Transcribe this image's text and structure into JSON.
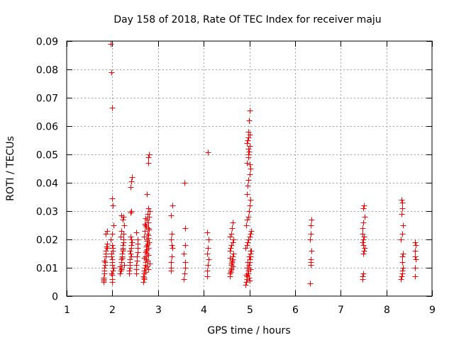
{
  "chart_data": {
    "type": "scatter",
    "title": "Day 158 of 2018, Rate Of TEC Index for receiver maju",
    "xlabel": "GPS time / hours",
    "ylabel": "ROTI / TECUs",
    "xlim": [
      1,
      9
    ],
    "ylim": [
      0,
      0.09
    ],
    "xticks": [
      1,
      2,
      3,
      4,
      5,
      6,
      7,
      8,
      9
    ],
    "xtick_labels": [
      "1",
      "2",
      "3",
      "4",
      "5",
      "6",
      "7",
      "8",
      "9"
    ],
    "yticks": [
      0,
      0.01,
      0.02,
      0.03,
      0.04,
      0.05,
      0.06,
      0.07,
      0.08,
      0.09
    ],
    "ytick_labels": [
      "0",
      "0.01",
      "0.02",
      "0.03",
      "0.04",
      "0.05",
      "0.06",
      "0.07",
      "0.08",
      "0.09"
    ],
    "grid": true,
    "marker": "+",
    "series": [
      {
        "name": "ROTI",
        "color": "#ff0000",
        "x": [
          1.8,
          1.81,
          1.82,
          1.83,
          1.84,
          1.85,
          1.86,
          1.87,
          1.88,
          1.89,
          1.8,
          1.82,
          1.84,
          1.86,
          1.88,
          1.81,
          1.83,
          1.85,
          1.97,
          1.98,
          1.99,
          2.0,
          2.01,
          2.02,
          1.97,
          1.99,
          2.01,
          1.98,
          2.0,
          2.02,
          1.98,
          1.99,
          2.0,
          2.0,
          1.99,
          2.01,
          1.98,
          2.0,
          1.99,
          2.01,
          2.17,
          2.18,
          2.19,
          2.2,
          2.21,
          2.22,
          2.23,
          2.24,
          2.25,
          2.26,
          2.17,
          2.19,
          2.21,
          2.23,
          2.25,
          2.18,
          2.2,
          2.22,
          2.24,
          2.26,
          2.19,
          2.21,
          2.23,
          2.2,
          2.37,
          2.38,
          2.39,
          2.4,
          2.41,
          2.42,
          2.43,
          2.37,
          2.39,
          2.41,
          2.43,
          2.38,
          2.4,
          2.42,
          2.4,
          2.41,
          2.39,
          2.42,
          2.4,
          2.52,
          2.53,
          2.54,
          2.55,
          2.56,
          2.52,
          2.54,
          2.56,
          2.53,
          2.55,
          2.68,
          2.69,
          2.7,
          2.71,
          2.72,
          2.73,
          2.74,
          2.75,
          2.76,
          2.77,
          2.78,
          2.79,
          2.8,
          2.81,
          2.68,
          2.7,
          2.72,
          2.74,
          2.76,
          2.78,
          2.8,
          2.69,
          2.71,
          2.73,
          2.75,
          2.77,
          2.79,
          2.81,
          2.7,
          2.72,
          2.74,
          2.76,
          2.78,
          2.8,
          2.71,
          2.73,
          2.75,
          2.77,
          2.79,
          2.75,
          2.77,
          2.79,
          2.78,
          2.8,
          2.79,
          2.76,
          2.78,
          2.74,
          2.7,
          2.72,
          3.28,
          3.29,
          3.3,
          3.31,
          3.28,
          3.3,
          3.29,
          3.31,
          3.3,
          3.29,
          3.57,
          3.58,
          3.59,
          3.6,
          3.57,
          3.59,
          3.6,
          3.58,
          4.07,
          4.08,
          4.09,
          4.1,
          4.07,
          4.09,
          4.1,
          4.08,
          4.09,
          4.57,
          4.58,
          4.59,
          4.6,
          4.61,
          4.62,
          4.63,
          4.64,
          4.65,
          4.57,
          4.59,
          4.61,
          4.63,
          4.65,
          4.58,
          4.6,
          4.62,
          4.64,
          4.59,
          4.61,
          4.63,
          4.6,
          4.62,
          4.58,
          4.92,
          4.93,
          4.94,
          4.95,
          4.96,
          4.97,
          4.98,
          4.99,
          5.0,
          5.01,
          5.02,
          5.03,
          5.04,
          4.92,
          4.94,
          4.96,
          4.98,
          5.0,
          5.02,
          5.04,
          4.93,
          4.95,
          4.97,
          4.99,
          5.01,
          5.03,
          4.94,
          4.96,
          4.98,
          5.0,
          5.02,
          4.95,
          4.97,
          4.99,
          5.01,
          4.96,
          4.98,
          5.0,
          4.97,
          4.99,
          5.01,
          4.95,
          4.97,
          4.98,
          5.0,
          4.96,
          4.99,
          5.02,
          4.94,
          4.97,
          4.99,
          5.01,
          4.93,
          5.03,
          6.33,
          6.34,
          6.35,
          6.36,
          6.33,
          6.35,
          6.34,
          6.36,
          6.35,
          7.47,
          7.48,
          7.49,
          7.5,
          7.51,
          7.52,
          7.47,
          7.49,
          7.51,
          7.48,
          7.5,
          7.52,
          7.49,
          7.51,
          7.5,
          7.48,
          8.32,
          8.33,
          8.34,
          8.35,
          8.36,
          8.32,
          8.34,
          8.36,
          8.33,
          8.35,
          8.34,
          8.33,
          8.35,
          8.34,
          8.36,
          8.62,
          8.63,
          8.64,
          8.62,
          8.64,
          8.63,
          8.63
        ],
        "y": [
          0.0055,
          0.006,
          0.008,
          0.01,
          0.012,
          0.014,
          0.016,
          0.0175,
          0.0185,
          0.023,
          0.005,
          0.009,
          0.011,
          0.015,
          0.017,
          0.0065,
          0.0125,
          0.022,
          0.089,
          0.079,
          0.0665,
          0.0345,
          0.032,
          0.025,
          0.02,
          0.018,
          0.016,
          0.014,
          0.012,
          0.01,
          0.008,
          0.006,
          0.005,
          0.022,
          0.011,
          0.009,
          0.015,
          0.0075,
          0.013,
          0.017,
          0.008,
          0.009,
          0.01,
          0.012,
          0.014,
          0.016,
          0.018,
          0.02,
          0.022,
          0.025,
          0.0105,
          0.013,
          0.015,
          0.017,
          0.019,
          0.021,
          0.023,
          0.027,
          0.028,
          0.011,
          0.0095,
          0.0135,
          0.0165,
          0.0285,
          0.008,
          0.01,
          0.012,
          0.015,
          0.018,
          0.02,
          0.042,
          0.009,
          0.013,
          0.017,
          0.019,
          0.016,
          0.0385,
          0.0405,
          0.0295,
          0.03,
          0.011,
          0.014,
          0.021,
          0.008,
          0.011,
          0.014,
          0.017,
          0.02,
          0.0095,
          0.0125,
          0.0155,
          0.0225,
          0.0185,
          0.005,
          0.006,
          0.008,
          0.01,
          0.012,
          0.014,
          0.016,
          0.018,
          0.02,
          0.022,
          0.024,
          0.026,
          0.028,
          0.03,
          0.007,
          0.009,
          0.011,
          0.013,
          0.015,
          0.017,
          0.019,
          0.021,
          0.023,
          0.025,
          0.027,
          0.029,
          0.0095,
          0.0115,
          0.0135,
          0.0155,
          0.0175,
          0.0195,
          0.0215,
          0.0235,
          0.0255,
          0.0275,
          0.0165,
          0.0185,
          0.0205,
          0.0105,
          0.0125,
          0.0145,
          0.049,
          0.05,
          0.047,
          0.036,
          0.031,
          0.0245,
          0.0065,
          0.0085,
          0.01,
          0.012,
          0.014,
          0.017,
          0.02,
          0.022,
          0.0285,
          0.032,
          0.018,
          0.009,
          0.006,
          0.008,
          0.01,
          0.012,
          0.015,
          0.018,
          0.024,
          0.04,
          0.007,
          0.009,
          0.011,
          0.013,
          0.015,
          0.017,
          0.02,
          0.0225,
          0.0508,
          0.007,
          0.008,
          0.009,
          0.01,
          0.011,
          0.012,
          0.013,
          0.014,
          0.015,
          0.016,
          0.017,
          0.018,
          0.019,
          0.02,
          0.021,
          0.022,
          0.024,
          0.026,
          0.0085,
          0.0095,
          0.0105,
          0.0115,
          0.0125,
          0.0135,
          0.004,
          0.005,
          0.006,
          0.007,
          0.008,
          0.009,
          0.01,
          0.011,
          0.012,
          0.013,
          0.014,
          0.015,
          0.016,
          0.017,
          0.018,
          0.019,
          0.02,
          0.021,
          0.022,
          0.023,
          0.025,
          0.027,
          0.028,
          0.03,
          0.032,
          0.034,
          0.036,
          0.039,
          0.041,
          0.043,
          0.045,
          0.047,
          0.049,
          0.051,
          0.053,
          0.055,
          0.056,
          0.057,
          0.058,
          0.062,
          0.0655,
          0.054,
          0.052,
          0.05,
          0.0465,
          0.012,
          0.014,
          0.016,
          0.01,
          0.008,
          0.0065,
          0.0055,
          0.0075,
          0.0095,
          0.0045,
          0.011,
          0.013,
          0.016,
          0.02,
          0.022,
          0.025,
          0.027,
          0.012,
          0.006,
          0.007,
          0.008,
          0.015,
          0.016,
          0.017,
          0.019,
          0.02,
          0.021,
          0.024,
          0.026,
          0.028,
          0.031,
          0.032,
          0.018,
          0.022,
          0.006,
          0.007,
          0.009,
          0.012,
          0.015,
          0.02,
          0.022,
          0.025,
          0.029,
          0.031,
          0.033,
          0.034,
          0.008,
          0.014,
          0.01,
          0.007,
          0.01,
          0.013,
          0.016,
          0.018,
          0.019,
          0.014
        ]
      }
    ]
  }
}
